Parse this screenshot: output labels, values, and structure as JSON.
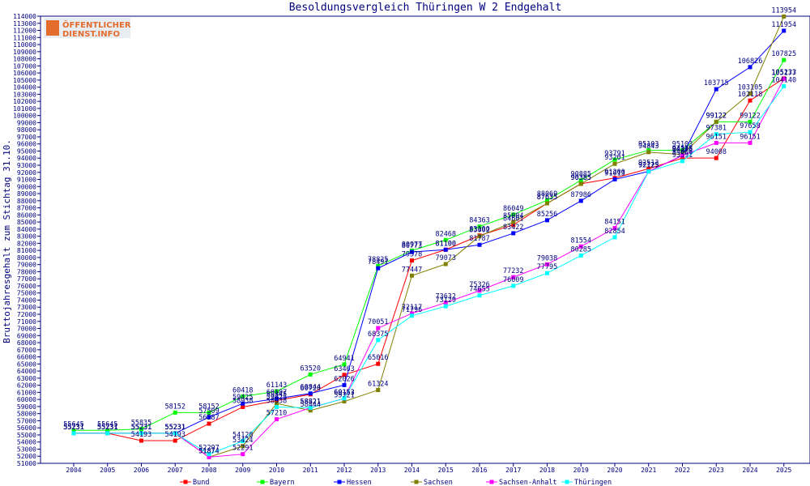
{
  "logo": {
    "line1": "ÖFFENTLICHER",
    "line2": "DIENST.INFO"
  },
  "chart_data": {
    "type": "line",
    "title": "Besoldungsvergleich Thüringen W 2 Endgehalt",
    "xlabel": "",
    "ylabel": "Bruttojahresgehalt zum Stichtag 31.10.",
    "categories": [
      "2004",
      "2005",
      "2006",
      "2007",
      "2008",
      "2009",
      "2010",
      "2011",
      "2012",
      "2013",
      "2014",
      "2015",
      "2016",
      "2017",
      "2018",
      "2019",
      "2020",
      "2021",
      "2022",
      "2023",
      "2024",
      "2025"
    ],
    "ylim": [
      51000,
      114000
    ],
    "ytick_step": 1000,
    "grid": false,
    "legend_position": "bottom",
    "series": [
      {
        "name": "Bund",
        "color": "#ff0000",
        "values": [
          55231,
          55231,
          54193,
          54193,
          56587,
          58938,
          59845,
          60720,
          63463,
          65016,
          79578,
          81100,
          83100,
          84601,
          87635,
          90385,
          91200,
          92513,
          94008,
          94008,
          102118,
          105233
        ],
        "labels": [
          "55231",
          "55231",
          "54193",
          "54193",
          "56587",
          "58938",
          "59845",
          "60720",
          "63463",
          "65016",
          "79578",
          "81100",
          "83100",
          "84601",
          "87635",
          "90385",
          "91200",
          "92513",
          "94008",
          "94008",
          "102118",
          "105233"
        ]
      },
      {
        "name": "Bayern",
        "color": "#00ff00",
        "values": [
          55645,
          55645,
          55835,
          58152,
          58152,
          60418,
          61143,
          63520,
          64941,
          78825,
          80977,
          82468,
          84363,
          86049,
          88069,
          90885,
          93791,
          95103,
          95103,
          99122,
          99122,
          107825
        ],
        "labels": [
          "55645",
          "55645",
          "55835",
          "58152",
          "58152",
          "60418",
          "61143",
          "63520",
          "64941",
          "78825",
          "80977",
          "82468",
          "84363",
          "86049",
          "88069",
          "90885",
          "93791",
          "95103",
          "95103",
          "99122",
          "99122",
          "107825"
        ]
      },
      {
        "name": "Hessen",
        "color": "#0000ff",
        "values": [
          55231,
          55231,
          55231,
          55231,
          57509,
          59425,
          60107,
          60844,
          62026,
          78491,
          80773,
          81100,
          81787,
          83422,
          85256,
          87986,
          91013,
          92125,
          94375,
          103715,
          106826,
          111954
        ],
        "labels": [
          "55231",
          "55231",
          "55231",
          "55231",
          "57509",
          "59425",
          "60107",
          "60844",
          "62026",
          "78491",
          "80773",
          "81100",
          "81787",
          "83422",
          "85256",
          "87986",
          "91013",
          "92125",
          "94375",
          "103715",
          "106826",
          "111954"
        ]
      },
      {
        "name": "Sachsen",
        "color": "#808000",
        "values": [
          55231,
          55231,
          55231,
          55231,
          51874,
          53424,
          59425,
          58444,
          59721,
          61324,
          77447,
          79073,
          83002,
          85004,
          87635,
          90385,
          93201,
          94843,
          94508,
          99122,
          103105,
          113954
        ],
        "labels": [
          "55231",
          "55231",
          "55231",
          "55231",
          "51874",
          "53424",
          "59425",
          "58444",
          "59721",
          "61324",
          "77447",
          "79073",
          "83002",
          "85004",
          "87635",
          "90385",
          "93201",
          "94843",
          "94508",
          "99122",
          "103105",
          "113954"
        ]
      },
      {
        "name": "Sachsen-Anhalt",
        "color": "#ff00ff",
        "values": [
          55231,
          55231,
          55231,
          55231,
          51874,
          52291,
          57210,
          58821,
          60153,
          70051,
          72117,
          73632,
          75326,
          77232,
          79038,
          81554,
          84151,
          92125,
          94375,
          96151,
          96151,
          105177
        ],
        "labels": [
          "55231",
          "55231",
          "55231",
          "55231",
          "51874",
          "52291",
          "57210",
          "58821",
          "60153",
          "70051",
          "72117",
          "73632",
          "75326",
          "77232",
          "79038",
          "81554",
          "84151",
          "92125",
          "94375",
          "96151",
          "96151",
          "105177"
        ]
      },
      {
        "name": "Thüringen",
        "color": "#00ffff",
        "values": [
          55231,
          55231,
          55231,
          55231,
          52297,
          54128,
          58938,
          58821,
          60153,
          68375,
          71796,
          73129,
          74655,
          76009,
          77795,
          80285,
          82854,
          92125,
          93591,
          97381,
          97658,
          104140
        ],
        "labels": [
          "55231",
          "55231",
          "55231",
          "55231",
          "52297",
          "54128",
          "58938",
          "58821",
          "60153",
          "68375",
          "71796",
          "73129",
          "74655",
          "76009",
          "77795",
          "80285",
          "82854",
          "92125",
          "93591",
          "97381",
          "97658",
          "104140"
        ]
      }
    ]
  }
}
